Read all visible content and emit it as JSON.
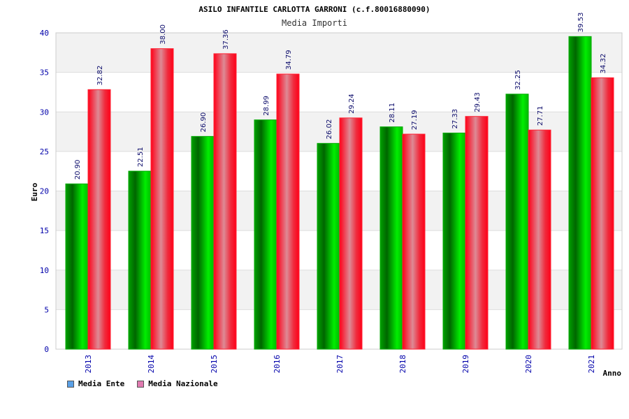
{
  "chart_data": {
    "type": "bar",
    "title": "ASILO INFANTILE CARLOTTA GARRONI (c.f.80016880090)",
    "subtitle": "Media Importi",
    "xlabel": "Anno",
    "ylabel": "Euro",
    "ylim": [
      0,
      40
    ],
    "yticks": [
      "0",
      "5",
      "10",
      "15",
      "20",
      "25",
      "30",
      "35",
      "40"
    ],
    "categories": [
      "2013",
      "2014",
      "2015",
      "2016",
      "2017",
      "2018",
      "2019",
      "2020",
      "2021"
    ],
    "series": [
      {
        "name": "Media Ente",
        "values": [
          20.9,
          22.51,
          26.9,
          28.99,
          26.02,
          28.11,
          27.33,
          32.25,
          39.53
        ],
        "labels": [
          "20.90",
          "22.51",
          "26.90",
          "28.99",
          "26.02",
          "28.11",
          "27.33",
          "32.25",
          "39.53"
        ]
      },
      {
        "name": "Media Nazionale",
        "values": [
          32.82,
          38.0,
          37.36,
          34.79,
          29.24,
          27.19,
          29.43,
          27.71,
          34.32
        ],
        "labels": [
          "32.82",
          "38.00",
          "37.36",
          "34.79",
          "29.24",
          "27.19",
          "29.43",
          "27.71",
          "34.32"
        ]
      }
    ],
    "legend_position": "bottom-left",
    "grid": true
  },
  "legend": {
    "ente_label": "Media Ente",
    "nazionale_label": "Media Nazionale"
  },
  "colors": {
    "ente_bar": "#00cc00",
    "nazionale_bar": "#ff1a2e",
    "ente_swatch": "#5aa0e6",
    "nazionale_swatch": "#e07ab0",
    "axis_text": "#0000aa",
    "band": "#f2f2f2"
  }
}
